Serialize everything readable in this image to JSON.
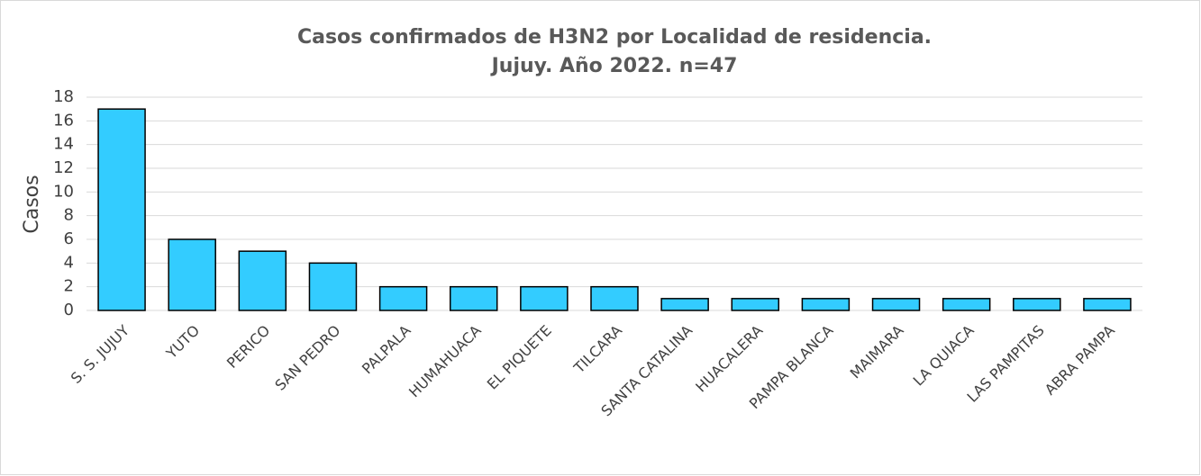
{
  "chart_data": {
    "type": "bar",
    "title": [
      "Casos confirmados de H3N2 por Localidad de residencia.",
      "Jujuy. Año 2022. n=47"
    ],
    "y_label": "Casos",
    "categories": [
      "S. S. JUJUY",
      "YUTO",
      "PERICO",
      "SAN PEDRO",
      "PALPALA",
      "HUMAHUACA",
      "EL PIQUETE",
      "TILCARA",
      "SANTA CATALINA",
      "HUACALERA",
      "PAMPA BLANCA",
      "MAIMARA",
      "LA QUIACA",
      "LAS PAMPITAS",
      "ABRA PAMPA"
    ],
    "values": [
      17,
      6,
      5,
      4,
      2,
      2,
      2,
      2,
      1,
      1,
      1,
      1,
      1,
      1,
      1
    ],
    "color": "#33ccff",
    "ylim": [
      0,
      18
    ],
    "yticks": [
      0,
      2,
      4,
      6,
      8,
      10,
      12,
      14,
      16,
      18
    ],
    "grid": true
  }
}
